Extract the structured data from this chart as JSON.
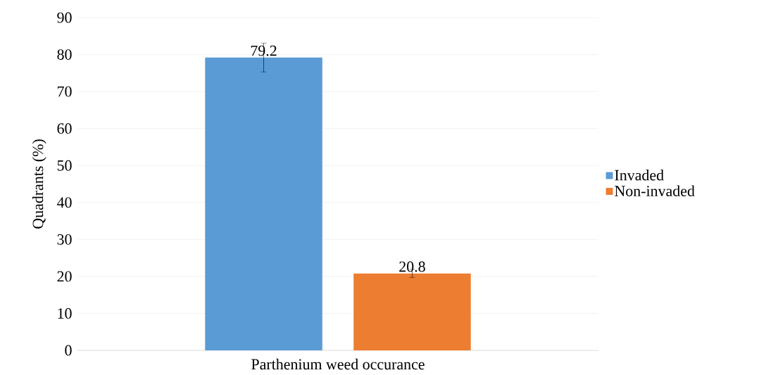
{
  "chart_data": {
    "type": "bar",
    "ylabel": "Quadrants (%)",
    "categories": [
      "Parthenium weed occurance"
    ],
    "series": [
      {
        "name": "Invaded",
        "color": "#5b9bd5",
        "values": [
          79.2
        ],
        "errors": [
          3.9
        ]
      },
      {
        "name": "Non-invaded",
        "color": "#ed7d31",
        "values": [
          20.8
        ],
        "errors": [
          1.1
        ]
      }
    ],
    "ylim": [
      0,
      90
    ],
    "yticks": [
      0,
      10,
      20,
      30,
      40,
      50,
      60,
      70,
      80,
      90
    ],
    "grid": "y",
    "legend": "right",
    "data_labels": true
  }
}
